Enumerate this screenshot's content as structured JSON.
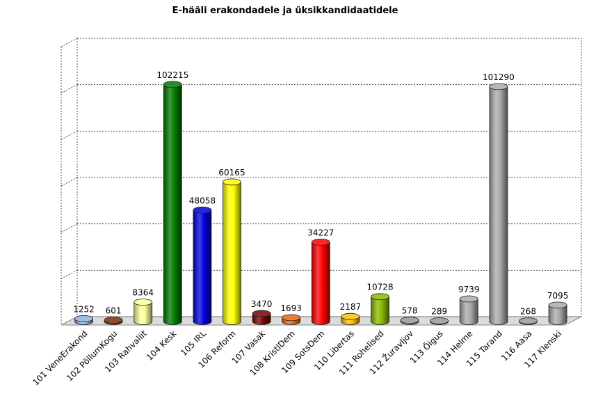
{
  "chart_data": {
    "type": "bar",
    "title": "E-hääli erakondadele ja üksikkandidaatidele",
    "xlabel": "",
    "ylabel": "",
    "ylim": [
      0,
      120000
    ],
    "grid": true,
    "legend": "none",
    "categories": [
      "101 VeneErakond",
      "102 PõllumKogu",
      "103 Rahvaliit",
      "104 Kesk",
      "105 IRL",
      "106 Reform",
      "107 Vasak",
      "108 KristlDem",
      "109 SotsDem",
      "110 Libertas",
      "111 Rohelised",
      "112 Žuravljov",
      "113 Õigus",
      "114 Helme",
      "115 Tarand",
      "116 Aasa",
      "117 Klenski"
    ],
    "values": [
      1252,
      601,
      8364,
      102215,
      48058,
      60165,
      3470,
      1693,
      34227,
      2187,
      10728,
      578,
      289,
      9739,
      101290,
      268,
      7095
    ],
    "value_labels": [
      "1252",
      "601",
      "8364",
      "102215",
      "48058",
      "60165",
      "3470",
      "1693",
      "34227",
      "2187",
      "10728",
      "578",
      "289",
      "9739",
      "101290",
      "268",
      "7095"
    ],
    "colors": [
      "#8fb4e3",
      "#7a2e0c",
      "#ffff99",
      "#007a00",
      "#0000dd",
      "#ffff00",
      "#7a0000",
      "#e86a10",
      "#ff0000",
      "#ffc000",
      "#88bb00",
      "#999999",
      "#999999",
      "#aaaaaa",
      "#aaaaaa",
      "#999999",
      "#aaaaaa"
    ]
  }
}
